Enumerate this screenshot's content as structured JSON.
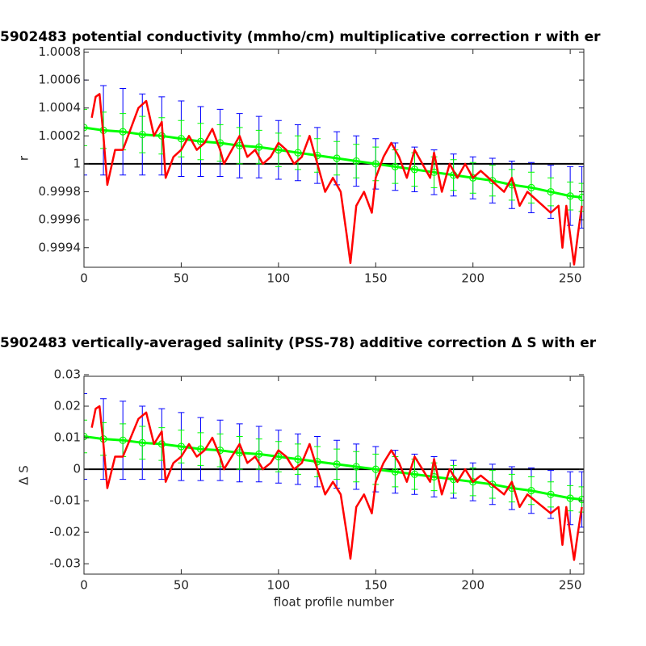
{
  "chart_data": [
    {
      "type": "line",
      "title": "5902483 potential conductivity (mmho/cm) multiplicative correction r with er",
      "ylabel": "r",
      "xlim": [
        0,
        257
      ],
      "xticks": [
        0,
        50,
        100,
        150,
        200,
        250
      ],
      "ylim": [
        0.99926,
        1.00082
      ],
      "yticks": [
        0.9994,
        0.9996,
        0.9998,
        1,
        1.0002,
        1.0004,
        1.0006,
        1.0008
      ],
      "reference_line": 1,
      "x": [
        0,
        10,
        20,
        30,
        40,
        50,
        60,
        70,
        80,
        90,
        100,
        110,
        120,
        130,
        140,
        150,
        160,
        170,
        180,
        190,
        200,
        210,
        220,
        230,
        240,
        250,
        256
      ],
      "series": [
        {
          "color": "#0000ff",
          "show_line": false,
          "values": [
            1.00026,
            1.00024,
            1.00023,
            1.00021,
            1.0002,
            1.00018,
            1.00016,
            1.00015,
            1.00013,
            1.00012,
            1.0001,
            1.00008,
            1.00006,
            1.00004,
            1.00002,
            1.0,
            0.99998,
            0.99996,
            0.99994,
            0.99992,
            0.9999,
            0.99988,
            0.99985,
            0.99983,
            0.9998,
            0.99977,
            0.99976
          ],
          "errors": [
            0.00034,
            0.00032,
            0.00031,
            0.00029,
            0.00028,
            0.00027,
            0.00025,
            0.00024,
            0.00023,
            0.00022,
            0.00021,
            0.0002,
            0.0002,
            0.00019,
            0.00018,
            0.00018,
            0.00017,
            0.00016,
            0.00016,
            0.00015,
            0.00015,
            0.00016,
            0.00017,
            0.00018,
            0.00019,
            0.00021,
            0.00022
          ]
        },
        {
          "color": "#00ff00",
          "show_line": true,
          "marker": "o",
          "values": [
            1.00026,
            1.00024,
            1.00023,
            1.00021,
            1.0002,
            1.00018,
            1.00016,
            1.00015,
            1.00013,
            1.00012,
            1.0001,
            1.00008,
            1.00006,
            1.00004,
            1.00002,
            1.0,
            0.99998,
            0.99996,
            0.99994,
            0.99992,
            0.9999,
            0.99988,
            0.99985,
            0.99983,
            0.9998,
            0.99977,
            0.99976
          ],
          "errors": [
            0.00013,
            0.00013,
            0.00013,
            0.00013,
            0.00013,
            0.00013,
            0.00013,
            0.00013,
            0.00013,
            0.00012,
            0.00012,
            0.00012,
            0.00012,
            0.00012,
            0.00012,
            0.00012,
            0.00012,
            0.00012,
            0.00011,
            0.00011,
            0.00011,
            0.00011,
            0.00011,
            0.00011,
            0.0001,
            0.0001,
            0.0001
          ]
        },
        {
          "color": "#ff0000",
          "show_line": true,
          "x": [
            4,
            6,
            8,
            10,
            12,
            16,
            20,
            24,
            28,
            32,
            36,
            40,
            42,
            46,
            50,
            54,
            58,
            62,
            66,
            70,
            72,
            76,
            80,
            84,
            88,
            92,
            96,
            100,
            104,
            108,
            112,
            116,
            120,
            124,
            128,
            132,
            135,
            137,
            140,
            144,
            148,
            150,
            154,
            158,
            162,
            166,
            170,
            174,
            178,
            180,
            184,
            188,
            192,
            196,
            200,
            204,
            208,
            212,
            216,
            220,
            224,
            228,
            232,
            236,
            240,
            244,
            246,
            248,
            252,
            254,
            256
          ],
          "values": [
            1.00033,
            1.00048,
            1.0005,
            1.0002,
            0.99985,
            1.0001,
            1.0001,
            1.00025,
            1.0004,
            1.00045,
            1.0002,
            1.0003,
            0.9999,
            1.00005,
            1.0001,
            1.0002,
            1.0001,
            1.00015,
            1.00025,
            1.0001,
            1.0,
            1.0001,
            1.0002,
            1.00005,
            1.0001,
            1.0,
            1.00005,
            1.00015,
            1.0001,
            1.0,
            1.00005,
            1.0002,
            1.0,
            0.9998,
            0.9999,
            0.9998,
            0.9995,
            0.99929,
            0.9997,
            0.9998,
            0.99965,
            0.9999,
            1.00005,
            1.00015,
            1.00005,
            0.9999,
            1.0001,
            1.0,
            0.9999,
            1.00008,
            0.9998,
            1.0,
            0.9999,
            1.0,
            0.9999,
            0.99995,
            0.9999,
            0.99985,
            0.9998,
            0.9999,
            0.9997,
            0.9998,
            0.99975,
            0.9997,
            0.99965,
            0.9997,
            0.9994,
            0.9997,
            0.99928,
            0.9995,
            0.9997
          ]
        }
      ]
    },
    {
      "type": "line",
      "title": "5902483 vertically-averaged salinity (PSS-78) additive correction Δ S with er",
      "ylabel": "Δ S",
      "xlabel": "float profile number",
      "xlim": [
        0,
        257
      ],
      "xticks": [
        0,
        50,
        100,
        150,
        200,
        250
      ],
      "ylim": [
        -0.0333,
        0.0295
      ],
      "yticks": [
        -0.03,
        -0.02,
        -0.01,
        0,
        0.01,
        0.02,
        0.03
      ],
      "reference_line": 0,
      "x": [
        0,
        10,
        20,
        30,
        40,
        50,
        60,
        70,
        80,
        90,
        100,
        110,
        120,
        130,
        140,
        150,
        160,
        170,
        180,
        190,
        200,
        210,
        220,
        230,
        240,
        250,
        256
      ],
      "series": [
        {
          "color": "#0000ff",
          "show_line": false,
          "values": [
            0.0104,
            0.0096,
            0.0092,
            0.0084,
            0.008,
            0.0072,
            0.0064,
            0.006,
            0.0052,
            0.0048,
            0.004,
            0.0032,
            0.0024,
            0.0016,
            0.0008,
            0,
            -0.0008,
            -0.0016,
            -0.0024,
            -0.0032,
            -0.004,
            -0.0048,
            -0.006,
            -0.0068,
            -0.008,
            -0.0092,
            -0.0096
          ],
          "errors": [
            0.0136,
            0.0128,
            0.0124,
            0.0116,
            0.0112,
            0.0108,
            0.01,
            0.0096,
            0.0092,
            0.0088,
            0.0084,
            0.008,
            0.008,
            0.0076,
            0.0072,
            0.0072,
            0.0068,
            0.0064,
            0.0064,
            0.006,
            0.006,
            0.0064,
            0.0068,
            0.0072,
            0.0076,
            0.0084,
            0.0088
          ]
        },
        {
          "color": "#00ff00",
          "show_line": true,
          "marker": "o",
          "values": [
            0.0104,
            0.0096,
            0.0092,
            0.0084,
            0.008,
            0.0072,
            0.0064,
            0.006,
            0.0052,
            0.0048,
            0.004,
            0.0032,
            0.0024,
            0.0016,
            0.0008,
            0,
            -0.0008,
            -0.0016,
            -0.0024,
            -0.0032,
            -0.004,
            -0.0048,
            -0.006,
            -0.0068,
            -0.008,
            -0.0092,
            -0.0096
          ],
          "errors": [
            0.0052,
            0.0052,
            0.0052,
            0.0052,
            0.0052,
            0.0052,
            0.0052,
            0.0052,
            0.0052,
            0.0048,
            0.0048,
            0.0048,
            0.0048,
            0.0048,
            0.0048,
            0.0048,
            0.0048,
            0.0048,
            0.0044,
            0.0044,
            0.0044,
            0.0044,
            0.0044,
            0.0044,
            0.004,
            0.004,
            0.004
          ]
        },
        {
          "color": "#ff0000",
          "show_line": true,
          "x": [
            4,
            6,
            8,
            10,
            12,
            16,
            20,
            24,
            28,
            32,
            36,
            40,
            42,
            46,
            50,
            54,
            58,
            62,
            66,
            70,
            72,
            76,
            80,
            84,
            88,
            92,
            96,
            100,
            104,
            108,
            112,
            116,
            120,
            124,
            128,
            132,
            135,
            137,
            140,
            144,
            148,
            150,
            154,
            158,
            162,
            166,
            170,
            174,
            178,
            180,
            184,
            188,
            192,
            196,
            200,
            204,
            208,
            212,
            216,
            220,
            224,
            228,
            232,
            236,
            240,
            244,
            246,
            248,
            252,
            254,
            256
          ],
          "values": [
            0.0132,
            0.0192,
            0.02,
            0.008,
            -0.006,
            0.004,
            0.004,
            0.01,
            0.016,
            0.018,
            0.008,
            0.012,
            -0.004,
            0.002,
            0.004,
            0.008,
            0.004,
            0.006,
            0.01,
            0.004,
            0,
            0.004,
            0.008,
            0.002,
            0.004,
            0,
            0.002,
            0.006,
            0.004,
            0,
            0.002,
            0.008,
            0,
            -0.008,
            -0.004,
            -0.008,
            -0.02,
            -0.0284,
            -0.012,
            -0.008,
            -0.014,
            -0.004,
            0.002,
            0.006,
            0.002,
            -0.004,
            0.004,
            0,
            -0.004,
            0.0032,
            -0.008,
            0,
            -0.004,
            0,
            -0.004,
            -0.002,
            -0.004,
            -0.006,
            -0.008,
            -0.004,
            -0.012,
            -0.008,
            -0.01,
            -0.012,
            -0.014,
            -0.012,
            -0.024,
            -0.012,
            -0.0288,
            -0.02,
            -0.012
          ]
        }
      ]
    }
  ]
}
